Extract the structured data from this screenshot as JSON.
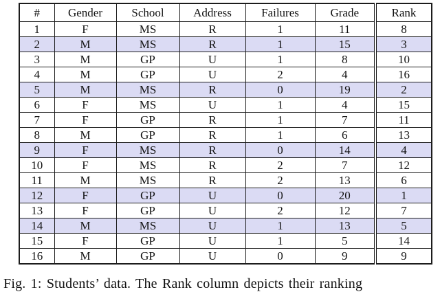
{
  "figure": {
    "caption": "Fig. 1: Students’ data. The Rank column depicts their ranking",
    "table": {
      "columns": [
        "#",
        "Gender",
        "School",
        "Address",
        "Failures",
        "Grade",
        "Rank"
      ],
      "rows": [
        [
          "1",
          "F",
          "MS",
          "R",
          "1",
          "11",
          "8"
        ],
        [
          "2",
          "M",
          "MS",
          "R",
          "1",
          "15",
          "3"
        ],
        [
          "3",
          "M",
          "GP",
          "U",
          "1",
          "8",
          "10"
        ],
        [
          "4",
          "M",
          "GP",
          "U",
          "2",
          "4",
          "16"
        ],
        [
          "5",
          "M",
          "MS",
          "R",
          "0",
          "19",
          "2"
        ],
        [
          "6",
          "F",
          "MS",
          "U",
          "1",
          "4",
          "15"
        ],
        [
          "7",
          "F",
          "GP",
          "R",
          "1",
          "7",
          "11"
        ],
        [
          "8",
          "M",
          "GP",
          "R",
          "1",
          "6",
          "13"
        ],
        [
          "9",
          "F",
          "MS",
          "R",
          "0",
          "14",
          "4"
        ],
        [
          "10",
          "F",
          "MS",
          "R",
          "2",
          "7",
          "12"
        ],
        [
          "11",
          "M",
          "MS",
          "R",
          "2",
          "13",
          "6"
        ],
        [
          "12",
          "F",
          "GP",
          "U",
          "0",
          "20",
          "1"
        ],
        [
          "13",
          "F",
          "GP",
          "U",
          "2",
          "12",
          "7"
        ],
        [
          "14",
          "M",
          "MS",
          "U",
          "1",
          "13",
          "5"
        ],
        [
          "15",
          "F",
          "GP",
          "U",
          "1",
          "5",
          "14"
        ],
        [
          "16",
          "M",
          "GP",
          "U",
          "0",
          "9",
          "9"
        ]
      ],
      "highlighted_row_numbers": [
        2,
        5,
        9,
        12,
        14
      ]
    }
  },
  "colors": {
    "row_highlight": "#dbdbf4",
    "border": "#1c1c1c",
    "text": "#111111",
    "background": "#ffffff"
  }
}
